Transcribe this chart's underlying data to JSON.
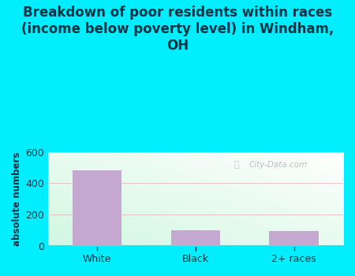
{
  "title": "Breakdown of poor residents within races\n(income below poverty level) in Windham,\nOH",
  "categories": [
    "White",
    "Black",
    "2+ races"
  ],
  "values": [
    480,
    100,
    95
  ],
  "bar_color": "#c4a8d0",
  "ylabel": "absolute numbers",
  "ylim": [
    0,
    600
  ],
  "yticks": [
    0,
    200,
    400,
    600
  ],
  "background_outer": "#00eeff",
  "watermark": "City-Data.com",
  "title_fontsize": 12,
  "axis_label_fontsize": 8.5,
  "tick_fontsize": 9,
  "grid_color": "#e8a0a0",
  "text_color": "#003344",
  "bar_width": 0.5
}
